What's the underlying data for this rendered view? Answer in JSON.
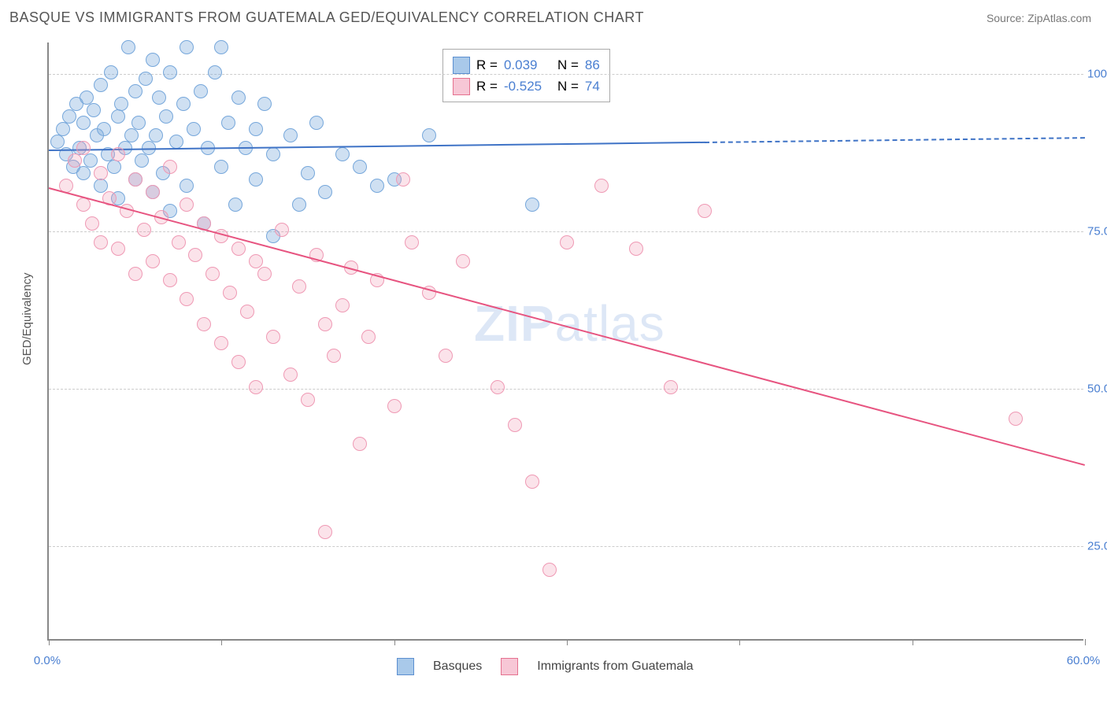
{
  "title": "BASQUE VS IMMIGRANTS FROM GUATEMALA GED/EQUIVALENCY CORRELATION CHART",
  "source": "Source: ZipAtlas.com",
  "ylabel": "GED/Equivalency",
  "xlim": [
    0,
    60
  ],
  "ylim": [
    10,
    105
  ],
  "x_ticks": [
    0,
    10,
    20,
    30,
    40,
    50,
    60
  ],
  "x_tick_labels": {
    "0": "0.0%",
    "60": "60.0%"
  },
  "y_ticks": [
    25,
    50,
    75,
    100
  ],
  "y_tick_labels": {
    "25": "25.0%",
    "50": "50.0%",
    "75": "75.0%",
    "100": "100.0%"
  },
  "grid_color": "#cccccc",
  "axis_color": "#888888",
  "background": "#ffffff",
  "watermark": {
    "text_bold": "ZIP",
    "text_light": "atlas"
  },
  "series": [
    {
      "name": "Basques",
      "color_fill": "rgba(118,167,219,0.35)",
      "color_stroke": "#76a7db",
      "legend_swatch_fill": "#a9c9ea",
      "legend_swatch_stroke": "#5b8fd0",
      "r_value": "0.039",
      "n_value": "86",
      "trend": {
        "x1": 0,
        "y1": 88,
        "x2": 60,
        "y2": 90,
        "solid_until_x": 38,
        "color": "#3f73c6",
        "width": 2
      },
      "points": [
        [
          0.5,
          89
        ],
        [
          0.8,
          91
        ],
        [
          1,
          87
        ],
        [
          1.2,
          93
        ],
        [
          1.4,
          85
        ],
        [
          1.6,
          95
        ],
        [
          1.8,
          88
        ],
        [
          2,
          92
        ],
        [
          2,
          84
        ],
        [
          2.2,
          96
        ],
        [
          2.4,
          86
        ],
        [
          2.6,
          94
        ],
        [
          2.8,
          90
        ],
        [
          3,
          98
        ],
        [
          3,
          82
        ],
        [
          3.2,
          91
        ],
        [
          3.4,
          87
        ],
        [
          3.6,
          100
        ],
        [
          3.8,
          85
        ],
        [
          4,
          93
        ],
        [
          4,
          80
        ],
        [
          4.2,
          95
        ],
        [
          4.4,
          88
        ],
        [
          4.6,
          104
        ],
        [
          4.8,
          90
        ],
        [
          5,
          97
        ],
        [
          5,
          83
        ],
        [
          5.2,
          92
        ],
        [
          5.4,
          86
        ],
        [
          5.6,
          99
        ],
        [
          5.8,
          88
        ],
        [
          6,
          102
        ],
        [
          6,
          81
        ],
        [
          6.2,
          90
        ],
        [
          6.4,
          96
        ],
        [
          6.6,
          84
        ],
        [
          6.8,
          93
        ],
        [
          7,
          100
        ],
        [
          7,
          78
        ],
        [
          7.4,
          89
        ],
        [
          7.8,
          95
        ],
        [
          8,
          104
        ],
        [
          8,
          82
        ],
        [
          8.4,
          91
        ],
        [
          8.8,
          97
        ],
        [
          9,
          76
        ],
        [
          9.2,
          88
        ],
        [
          9.6,
          100
        ],
        [
          10,
          104
        ],
        [
          10,
          85
        ],
        [
          10.4,
          92
        ],
        [
          10.8,
          79
        ],
        [
          11,
          96
        ],
        [
          11.4,
          88
        ],
        [
          12,
          83
        ],
        [
          12,
          91
        ],
        [
          12.5,
          95
        ],
        [
          13,
          74
        ],
        [
          13,
          87
        ],
        [
          14,
          90
        ],
        [
          14.5,
          79
        ],
        [
          15,
          84
        ],
        [
          15.5,
          92
        ],
        [
          16,
          81
        ],
        [
          17,
          87
        ],
        [
          18,
          85
        ],
        [
          19,
          82
        ],
        [
          20,
          83
        ],
        [
          22,
          90
        ],
        [
          28,
          79
        ]
      ]
    },
    {
      "name": "Immigrants from Guatemala",
      "color_fill": "rgba(239,153,180,0.28)",
      "color_stroke": "#ef99b4",
      "legend_swatch_fill": "#f7c7d6",
      "legend_swatch_stroke": "#e5718f",
      "r_value": "-0.525",
      "n_value": "74",
      "trend": {
        "x1": 0,
        "y1": 82,
        "x2": 60,
        "y2": 38,
        "solid_until_x": 60,
        "color": "#e75480",
        "width": 2
      },
      "points": [
        [
          1,
          82
        ],
        [
          1.5,
          86
        ],
        [
          2,
          79
        ],
        [
          2,
          88
        ],
        [
          2.5,
          76
        ],
        [
          3,
          84
        ],
        [
          3,
          73
        ],
        [
          3.5,
          80
        ],
        [
          4,
          87
        ],
        [
          4,
          72
        ],
        [
          4.5,
          78
        ],
        [
          5,
          83
        ],
        [
          5,
          68
        ],
        [
          5.5,
          75
        ],
        [
          6,
          81
        ],
        [
          6,
          70
        ],
        [
          6.5,
          77
        ],
        [
          7,
          67
        ],
        [
          7,
          85
        ],
        [
          7.5,
          73
        ],
        [
          8,
          79
        ],
        [
          8,
          64
        ],
        [
          8.5,
          71
        ],
        [
          9,
          76
        ],
        [
          9,
          60
        ],
        [
          9.5,
          68
        ],
        [
          10,
          74
        ],
        [
          10,
          57
        ],
        [
          10.5,
          65
        ],
        [
          11,
          72
        ],
        [
          11,
          54
        ],
        [
          11.5,
          62
        ],
        [
          12,
          70
        ],
        [
          12,
          50
        ],
        [
          12.5,
          68
        ],
        [
          13,
          58
        ],
        [
          13.5,
          75
        ],
        [
          14,
          52
        ],
        [
          14.5,
          66
        ],
        [
          15,
          48
        ],
        [
          15.5,
          71
        ],
        [
          16,
          60
        ],
        [
          16.5,
          55
        ],
        [
          17,
          63
        ],
        [
          17.5,
          69
        ],
        [
          18,
          41
        ],
        [
          18.5,
          58
        ],
        [
          19,
          67
        ],
        [
          20,
          47
        ],
        [
          20.5,
          83
        ],
        [
          21,
          73
        ],
        [
          22,
          65
        ],
        [
          23,
          55
        ],
        [
          24,
          70
        ],
        [
          26,
          50
        ],
        [
          27,
          44
        ],
        [
          28,
          35
        ],
        [
          29,
          21
        ],
        [
          30,
          73
        ],
        [
          32,
          82
        ],
        [
          34,
          72
        ],
        [
          36,
          50
        ],
        [
          38,
          78
        ],
        [
          56,
          45
        ],
        [
          16,
          27
        ]
      ]
    }
  ],
  "corr_legend": {
    "r_label": "R =",
    "n_label": "N =",
    "value_color": "#4a7fd1"
  },
  "bottom_legend": {
    "label_a": "Basques",
    "label_b": "Immigrants from Guatemala"
  }
}
